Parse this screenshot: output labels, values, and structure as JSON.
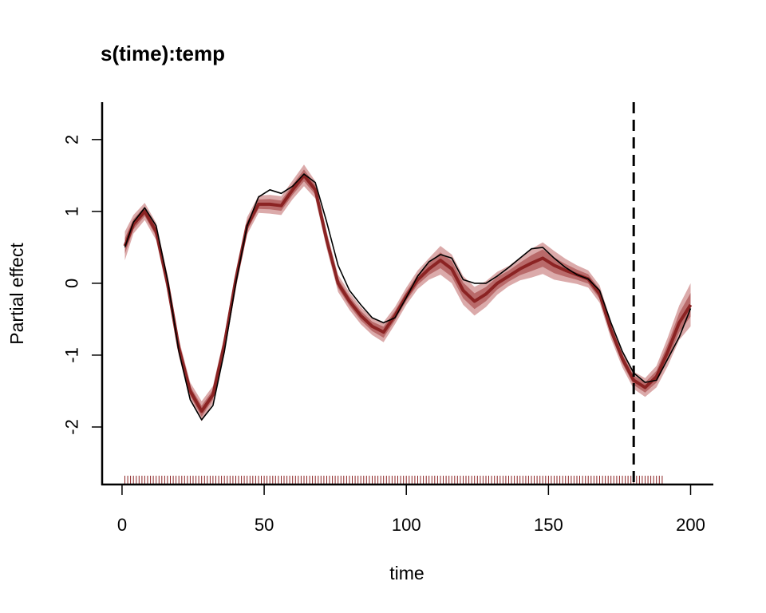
{
  "chart_data": {
    "type": "line",
    "title": "s(time):temp",
    "xlabel": "time",
    "ylabel": "Partial effect",
    "xlim": [
      -7,
      208
    ],
    "ylim": [
      -2.8,
      2.52
    ],
    "xticks": [
      0,
      50,
      100,
      150,
      200
    ],
    "yticks": [
      -2,
      -1,
      0,
      1,
      2
    ],
    "vline_x": 180,
    "rug": {
      "from": 1,
      "to": 190,
      "step": 1
    },
    "colors": {
      "mean": "#8b2323",
      "band_inner": "#b96a6a",
      "band_outer": "#dbaaaa",
      "truth": "#000000",
      "rug": "#8b2323"
    },
    "series": [
      {
        "role": "estimate",
        "x": [
          1,
          4,
          8,
          12,
          16,
          20,
          24,
          28,
          32,
          36,
          40,
          44,
          48,
          52,
          56,
          60,
          64,
          68,
          72,
          76,
          80,
          84,
          88,
          92,
          96,
          100,
          104,
          108,
          112,
          116,
          120,
          124,
          128,
          132,
          136,
          140,
          144,
          148,
          152,
          156,
          160,
          164,
          168,
          172,
          176,
          180,
          184,
          188,
          192,
          196,
          200
        ],
        "y": [
          0.52,
          0.82,
          1.0,
          0.72,
          0.0,
          -0.9,
          -1.5,
          -1.78,
          -1.55,
          -0.85,
          0.05,
          0.8,
          1.1,
          1.1,
          1.08,
          1.3,
          1.5,
          1.3,
          0.6,
          0.0,
          -0.25,
          -0.45,
          -0.6,
          -0.68,
          -0.45,
          -0.18,
          0.05,
          0.2,
          0.32,
          0.2,
          -0.1,
          -0.25,
          -0.15,
          0.0,
          0.1,
          0.2,
          0.28,
          0.35,
          0.25,
          0.18,
          0.12,
          0.06,
          -0.15,
          -0.65,
          -1.05,
          -1.35,
          -1.45,
          -1.3,
          -0.95,
          -0.55,
          -0.3
        ],
        "se": [
          0.2,
          0.13,
          0.12,
          0.12,
          0.12,
          0.12,
          0.12,
          0.14,
          0.12,
          0.12,
          0.12,
          0.12,
          0.12,
          0.13,
          0.13,
          0.13,
          0.15,
          0.12,
          0.12,
          0.12,
          0.12,
          0.12,
          0.12,
          0.14,
          0.12,
          0.12,
          0.13,
          0.15,
          0.2,
          0.2,
          0.2,
          0.2,
          0.18,
          0.16,
          0.14,
          0.16,
          0.2,
          0.22,
          0.2,
          0.16,
          0.13,
          0.12,
          0.12,
          0.12,
          0.12,
          0.12,
          0.13,
          0.15,
          0.2,
          0.24,
          0.3
        ]
      },
      {
        "role": "truth",
        "x": [
          1,
          4,
          8,
          12,
          16,
          20,
          24,
          28,
          32,
          36,
          40,
          44,
          48,
          52,
          56,
          60,
          64,
          68,
          72,
          76,
          80,
          84,
          88,
          92,
          96,
          100,
          104,
          108,
          112,
          116,
          120,
          124,
          128,
          132,
          136,
          140,
          144,
          148,
          152,
          156,
          160,
          164,
          168,
          172,
          176,
          180,
          184,
          188,
          192,
          196,
          200
        ],
        "y": [
          0.5,
          0.85,
          1.05,
          0.8,
          0.05,
          -0.95,
          -1.62,
          -1.9,
          -1.7,
          -0.95,
          0.0,
          0.8,
          1.2,
          1.3,
          1.25,
          1.35,
          1.52,
          1.4,
          0.85,
          0.25,
          -0.1,
          -0.3,
          -0.48,
          -0.55,
          -0.48,
          -0.2,
          0.1,
          0.3,
          0.4,
          0.35,
          0.05,
          0.0,
          0.0,
          0.1,
          0.22,
          0.35,
          0.48,
          0.5,
          0.35,
          0.22,
          0.12,
          0.06,
          -0.1,
          -0.55,
          -0.95,
          -1.25,
          -1.38,
          -1.35,
          -1.05,
          -0.75,
          -0.35
        ]
      }
    ]
  }
}
